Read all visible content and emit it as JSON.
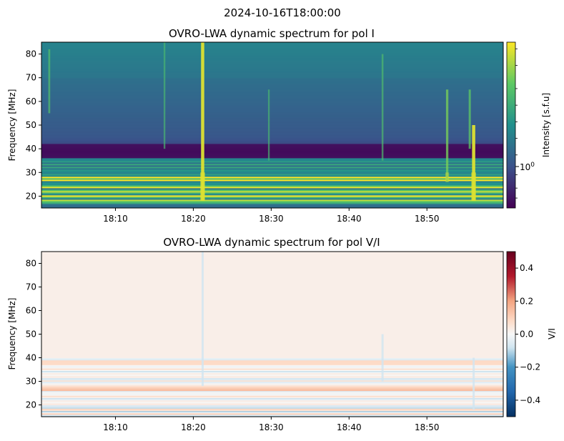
{
  "suptitle": "2024-10-16T18:00:00",
  "chart_data": [
    {
      "type": "heatmap",
      "title": "OVRO-LWA dynamic spectrum for pol I",
      "xlabel": "",
      "ylabel": "Frequency [MHz]",
      "x_ticks": [
        "18:10",
        "18:20",
        "18:30",
        "18:40",
        "18:50"
      ],
      "x_tick_values_min": [
        10,
        20,
        30,
        40,
        50
      ],
      "xlim_min": [
        0.5,
        59.8
      ],
      "y_ticks": [
        20,
        30,
        40,
        50,
        60,
        70,
        80
      ],
      "ylim": [
        15,
        85
      ],
      "colormap": "viridis",
      "colorbar": {
        "label": "Intensity [s.f.u]",
        "scale": "log",
        "ticks": [
          "10^0"
        ]
      },
      "features": {
        "bright_bands_mhz": [
          18,
          20,
          22,
          24,
          27,
          28
        ],
        "dark_band_mhz": [
          36,
          42
        ],
        "bursts": [
          {
            "time_min": 21.2,
            "from_mhz": 85,
            "to_mhz": 18,
            "strength": 1.0
          },
          {
            "time_min": 56.0,
            "from_mhz": 50,
            "to_mhz": 18,
            "strength": 1.0
          },
          {
            "time_min": 52.6,
            "from_mhz": 65,
            "to_mhz": 26,
            "strength": 0.6
          },
          {
            "time_min": 55.5,
            "from_mhz": 65,
            "to_mhz": 40,
            "strength": 0.5
          },
          {
            "time_min": 1.5,
            "from_mhz": 82,
            "to_mhz": 55,
            "strength": 0.4
          },
          {
            "time_min": 16.3,
            "from_mhz": 85,
            "to_mhz": 40,
            "strength": 0.3
          },
          {
            "time_min": 29.7,
            "from_mhz": 65,
            "to_mhz": 35,
            "strength": 0.3
          },
          {
            "time_min": 44.3,
            "from_mhz": 80,
            "to_mhz": 35,
            "strength": 0.35
          }
        ]
      }
    },
    {
      "type": "heatmap",
      "title": "OVRO-LWA dynamic spectrum for pol V/I",
      "xlabel": "",
      "ylabel": "Frequency [MHz]",
      "x_ticks": [
        "18:10",
        "18:20",
        "18:30",
        "18:40",
        "18:50"
      ],
      "x_tick_values_min": [
        10,
        20,
        30,
        40,
        50
      ],
      "xlim_min": [
        0.5,
        59.8
      ],
      "y_ticks": [
        20,
        30,
        40,
        50,
        60,
        70,
        80
      ],
      "ylim": [
        15,
        85
      ],
      "colormap": "RdBu_r",
      "colorbar": {
        "label": "V/I",
        "ticks": [
          0.4,
          0.2,
          0.0,
          -0.2,
          -0.4
        ],
        "tick_labels": [
          "0.4",
          "0.2",
          "0.0",
          "−0.2",
          "−0.4"
        ],
        "range": [
          -0.5,
          0.5
        ]
      }
    }
  ]
}
